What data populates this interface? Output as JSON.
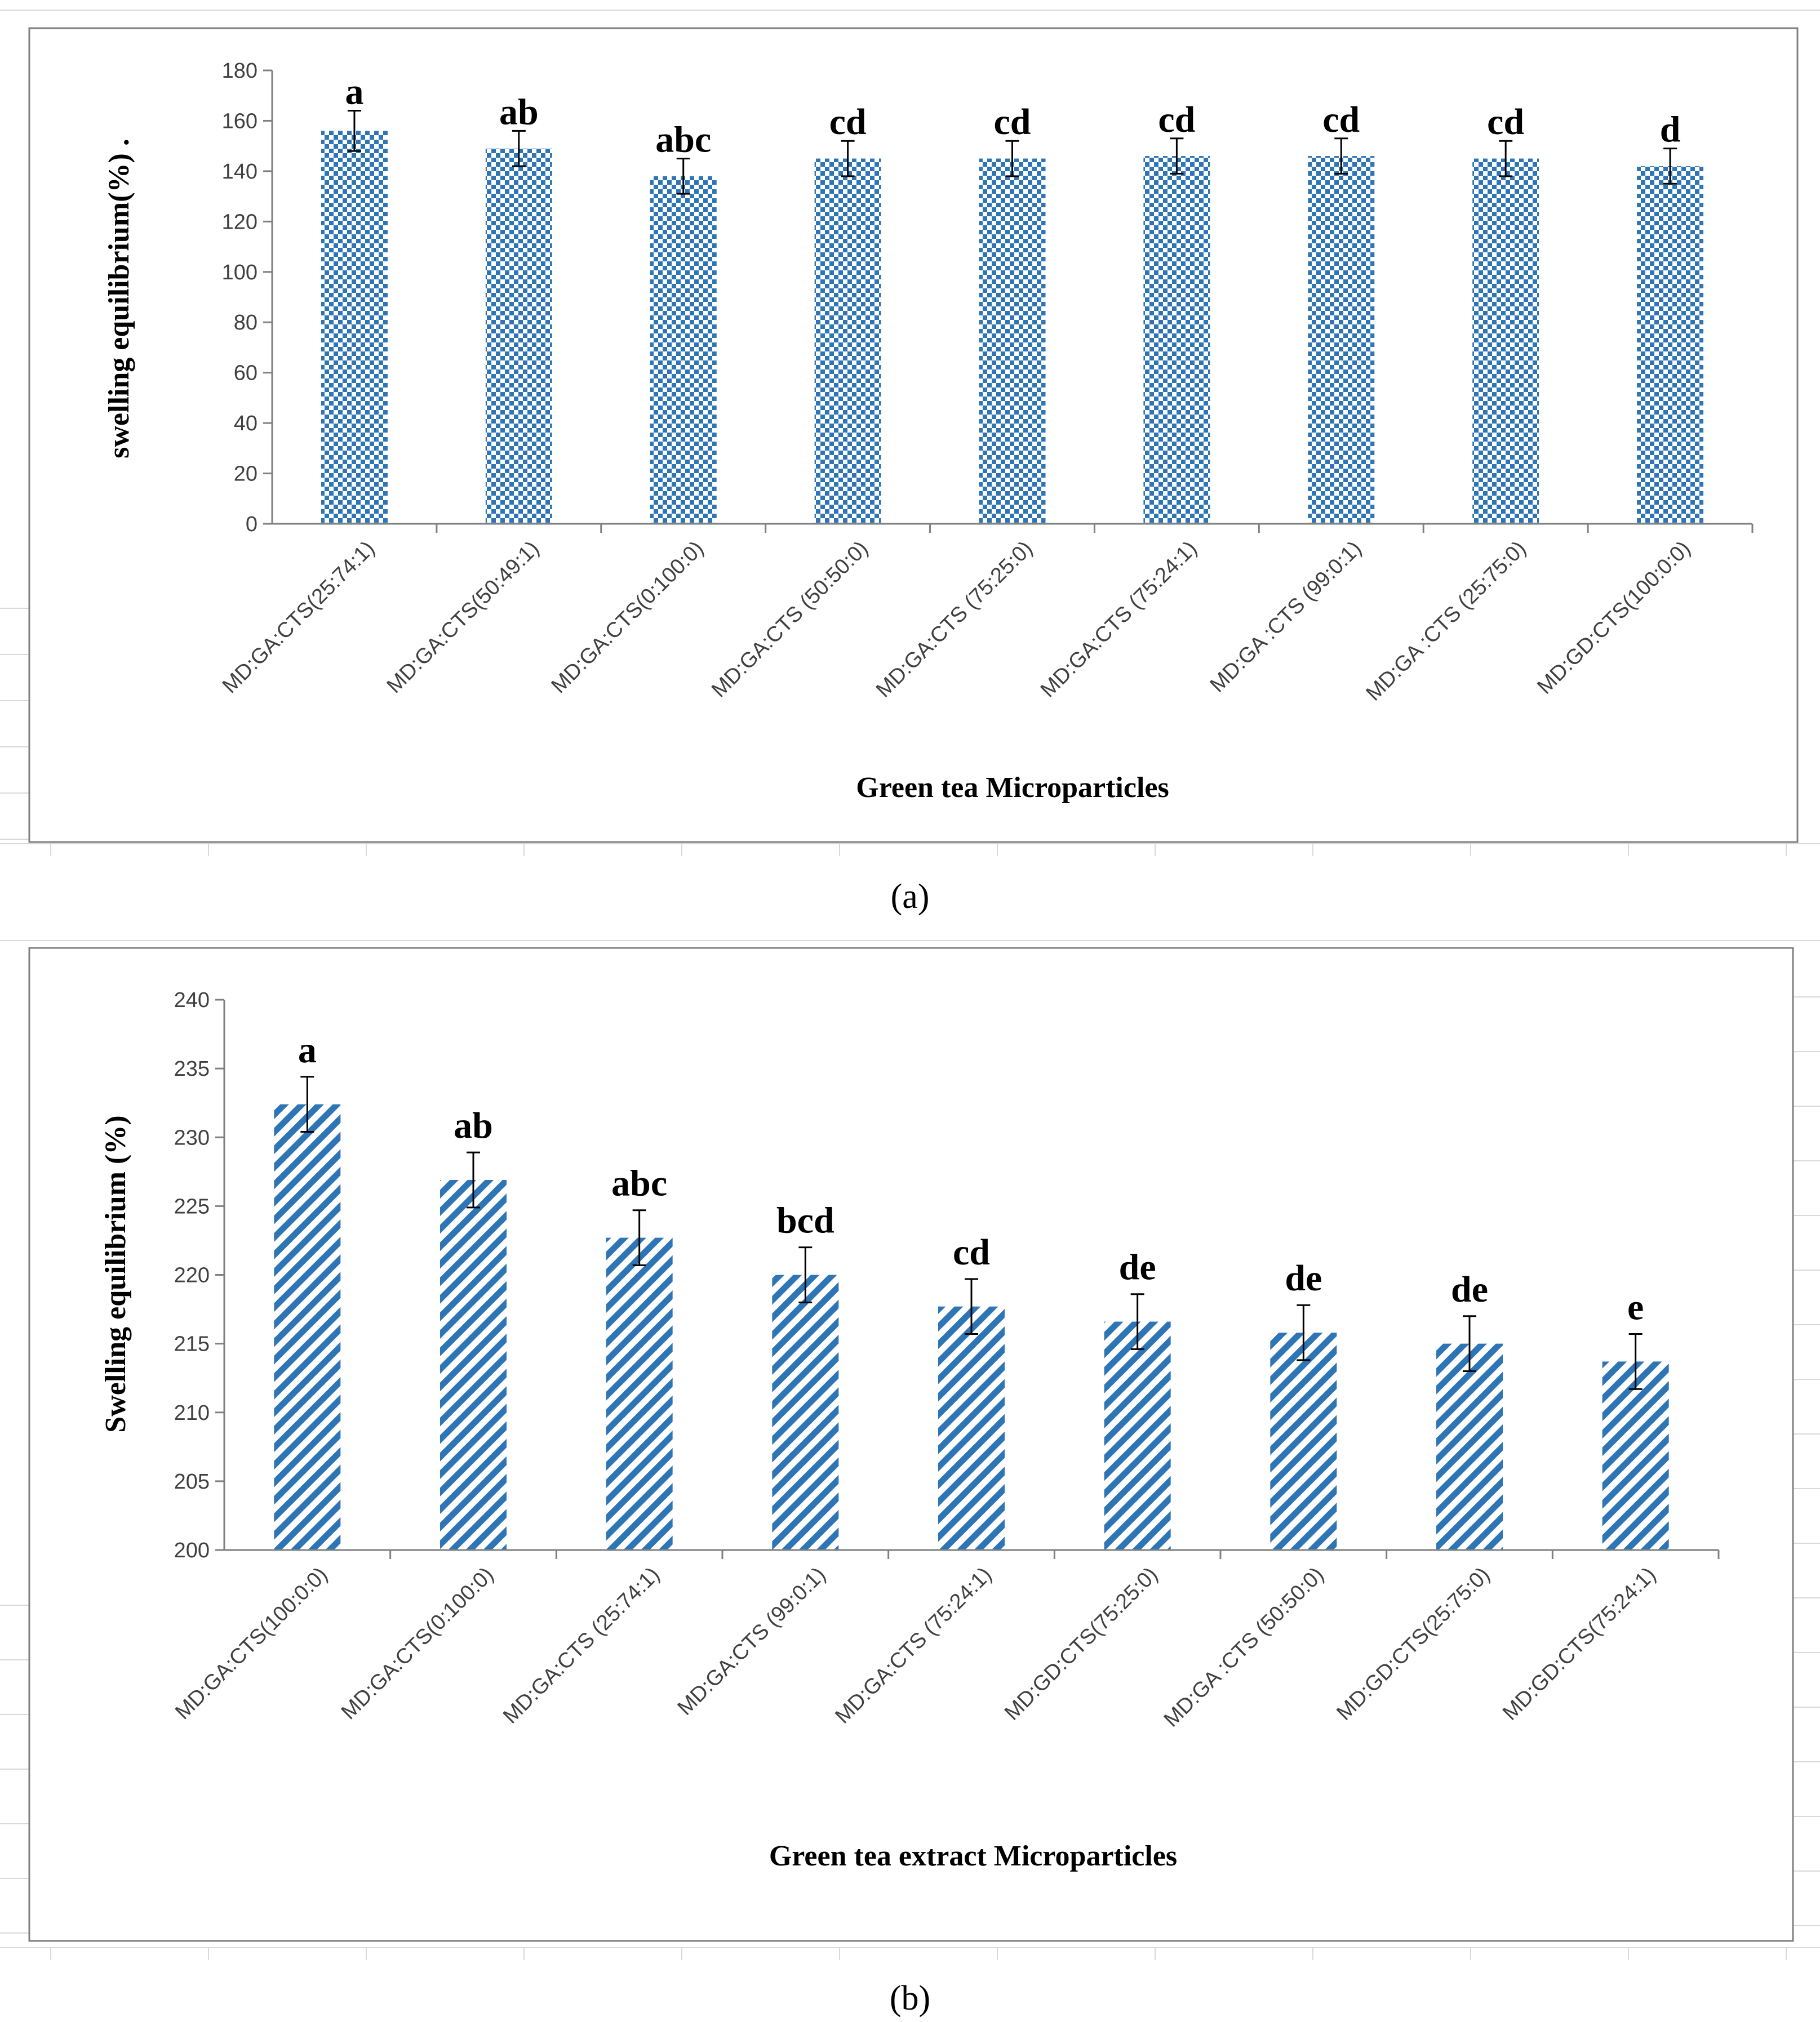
{
  "chart_data": [
    {
      "type": "bar",
      "panel_label": "(a)",
      "categories": [
        "MD:GA:CTS(25:74:1)",
        "MD:GA:CTS(50:49:1)",
        "MD:GA:CTS(0:100:0)",
        "MD:GA:CTS (50:50:0)",
        "MD:GA:CTS (75:25:0)",
        "MD:GA:CTS (75:24:1)",
        "MD:GA :CTS (99:0:1)",
        "MD:GA :CTS (25:75:0)",
        "MD:GD:CTS(100:0:0)"
      ],
      "values": [
        156,
        149,
        138,
        145,
        145,
        146,
        146,
        145,
        142
      ],
      "errors": [
        8,
        7,
        7,
        7,
        7,
        7,
        7,
        7,
        7
      ],
      "letters": [
        "a",
        "ab",
        "abc",
        "cd",
        "cd",
        "cd",
        "cd",
        "cd",
        "d"
      ],
      "xlabel": "Green tea Microparticles",
      "ylabel": "swelling equilibrium(%)  .",
      "ylim": [
        0,
        180
      ],
      "yticks": [
        0,
        20,
        40,
        60,
        80,
        100,
        120,
        140,
        160,
        180
      ],
      "pattern": "checker",
      "color": "#2e75b6"
    },
    {
      "type": "bar",
      "panel_label": "(b)",
      "categories": [
        "MD:GA:CTS(100:0:0)",
        "MD:GA:CTS(0:100:0)",
        "MD:GA:CTS (25:74:1)",
        "MD:GA:CTS (99:0:1)",
        "MD:GA:CTS (75:24:1)",
        "MD:GD:CTS(75:25:0)",
        "MD:GA :CTS (50:50:0)",
        "MD:GD:CTS(25:75:0)",
        "MD:GD:CTS(75:24:1)"
      ],
      "values": [
        232.4,
        226.9,
        222.7,
        220.0,
        217.7,
        216.6,
        215.8,
        215.0,
        213.7
      ],
      "errors": [
        2.0,
        2.0,
        2.0,
        2.0,
        2.0,
        2.0,
        2.0,
        2.0,
        2.0
      ],
      "letters": [
        "a",
        "ab",
        "abc",
        "bcd",
        "cd",
        "de",
        "de",
        "de",
        "e"
      ],
      "xlabel": "Green tea extract Microparticles",
      "ylabel": "Swelling  equilibrium   (%)",
      "ylim": [
        200,
        240
      ],
      "yticks": [
        200,
        205,
        210,
        215,
        220,
        225,
        230,
        235,
        240
      ],
      "pattern": "diagonal",
      "color": "#2e75b6"
    }
  ]
}
